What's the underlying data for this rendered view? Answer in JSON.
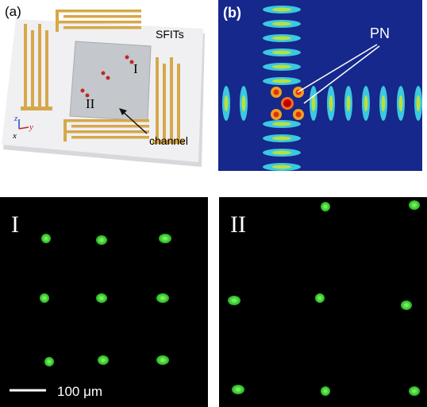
{
  "panel_a": {
    "label": "(a)",
    "sfits": "SFITs",
    "region_1": "I",
    "region_2": "II",
    "channel": "channel",
    "axes": {
      "z": "z",
      "y": "y",
      "x": "x"
    }
  },
  "panel_b": {
    "label": "(b)",
    "pn": "PN"
  },
  "panel_c": {
    "label": "I",
    "scale_bar": "100 μm"
  },
  "panel_d": {
    "label": "II"
  }
}
